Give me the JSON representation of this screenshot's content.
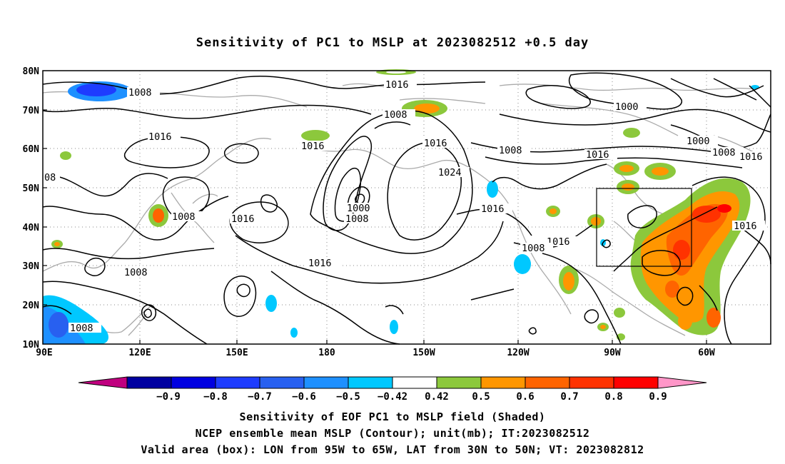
{
  "title": "Sensitivity of PC1 to MSLP at 2023082512 +0.5 day",
  "map": {
    "lat_labels": [
      "80N",
      "70N",
      "60N",
      "50N",
      "40N",
      "30N",
      "20N",
      "10N"
    ],
    "lon_labels": [
      "90E",
      "120E",
      "150E",
      "180",
      "150W",
      "120W",
      "90W",
      "60W"
    ],
    "contour_labels": [
      {
        "text": "1008"
      },
      {
        "text": "1016"
      },
      {
        "text": "1016"
      },
      {
        "text": "1008"
      },
      {
        "text": "1016"
      },
      {
        "text": "1008"
      },
      {
        "text": "1016"
      },
      {
        "text": "1024"
      },
      {
        "text": "1000"
      },
      {
        "text": "1008"
      },
      {
        "text": "1016"
      },
      {
        "text": "1016"
      },
      {
        "text": "1008"
      },
      {
        "text": "1016"
      },
      {
        "text": "1008"
      },
      {
        "text": "1016"
      },
      {
        "text": "1000"
      },
      {
        "text": "1000"
      },
      {
        "text": "1008"
      },
      {
        "text": "1016"
      },
      {
        "text": "1016"
      },
      {
        "text": "1008"
      },
      {
        "text": "08"
      },
      {
        "text": "1008"
      }
    ],
    "box": {
      "lon_west": "95W",
      "lon_east": "65W",
      "lat_south": "30N",
      "lat_north": "50N"
    }
  },
  "colorbar": {
    "tick_labels": [
      "-0.9",
      "-0.8",
      "-0.7",
      "-0.6",
      "-0.5",
      "-0.42",
      "0.42",
      "0.5",
      "0.6",
      "0.7",
      "0.8",
      "0.9"
    ],
    "colors": [
      "#c0007f",
      "#0000a0",
      "#0000e0",
      "#1e3cff",
      "#2860f0",
      "#1e90ff",
      "#00c8ff",
      "#ffffff",
      "#8cc83c",
      "#ff9600",
      "#ff6400",
      "#ff3200",
      "#ff0000",
      "#ff96c8"
    ]
  },
  "captions": [
    "Sensitivity of EOF PC1 to MSLP field (Shaded)",
    "NCEP ensemble mean MSLP (Contour); unit(mb); IT:2023082512",
    "Valid area (box): LON from 95W to 65W, LAT from 30N to 50N; VT: 2023082812"
  ]
}
